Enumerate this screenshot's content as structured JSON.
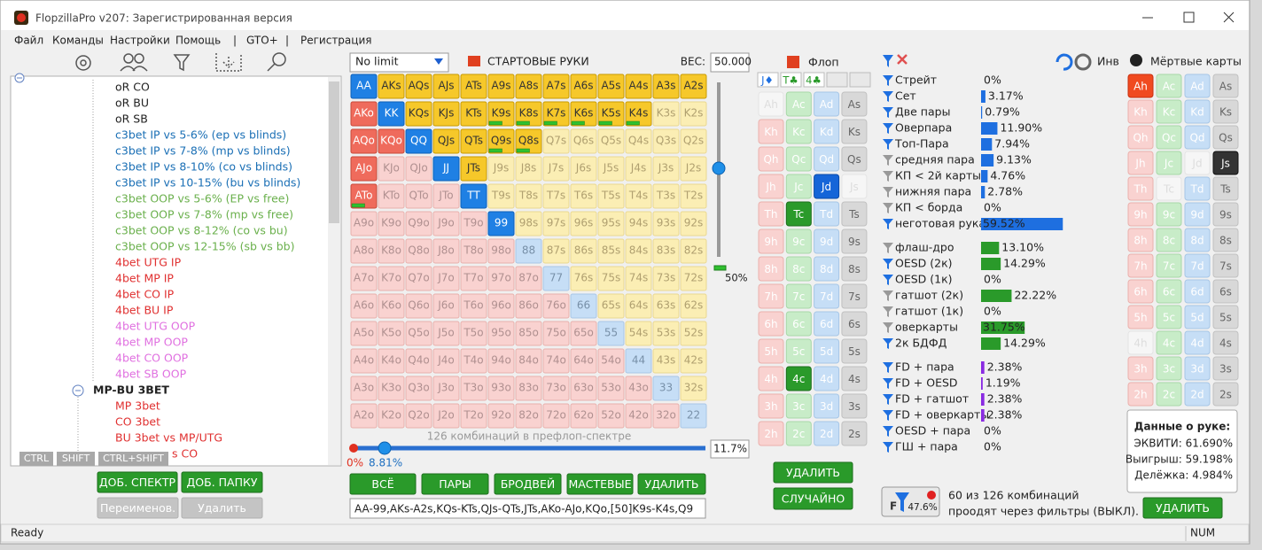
{
  "window": {
    "title": "FlopzillaPro v207: Зарегистрированная версия"
  },
  "menu": [
    "Файл",
    "Команды",
    "Настройки",
    "Помощь",
    "|",
    "GTO+",
    "|",
    "Регистрация"
  ],
  "tree": {
    "items": [
      {
        "text": "oR CO",
        "color": "#222222"
      },
      {
        "text": "oR BU",
        "color": "#222222"
      },
      {
        "text": "oR SB",
        "color": "#222222"
      },
      {
        "text": "c3bet IP vs 5-6% (ep vs blinds)",
        "color": "#1a6fb5"
      },
      {
        "text": "c3bet IP vs 7-8% (mp vs blinds)",
        "color": "#1a6fb5"
      },
      {
        "text": "c3bet IP vs 8-10% (co vs blinds)",
        "color": "#1a6fb5"
      },
      {
        "text": "c3bet IP vs 10-15% (bu vs blinds)",
        "color": "#1a6fb5"
      },
      {
        "text": "c3bet OOP vs 5-6% (EP vs free)",
        "color": "#6ab04c"
      },
      {
        "text": "c3bet OOP vs 7-8% (mp vs free)",
        "color": "#6ab04c"
      },
      {
        "text": "c3bet OOP vs 8-12% (co vs bu)",
        "color": "#6ab04c"
      },
      {
        "text": "c3bet OOP vs 12-15% (sb vs bb)",
        "color": "#6ab04c"
      },
      {
        "text": "4bet UTG IP",
        "color": "#e03030"
      },
      {
        "text": "4bet MP IP",
        "color": "#e03030"
      },
      {
        "text": "4bet CO IP",
        "color": "#e03030"
      },
      {
        "text": "4bet BU IP",
        "color": "#e03030"
      },
      {
        "text": "4bet UTG OOP",
        "color": "#e070e0"
      },
      {
        "text": "4bet MP OOP",
        "color": "#e070e0"
      },
      {
        "text": "4bet CO OOP",
        "color": "#e070e0"
      },
      {
        "text": "4bet SB OOP",
        "color": "#e070e0"
      }
    ],
    "group": "MP-BU 3BET",
    "group_items": [
      {
        "text": "MP 3bet",
        "color": "#e03030"
      },
      {
        "text": "CO 3bet",
        "color": "#e03030"
      },
      {
        "text": "BU 3bet vs MP/UTG",
        "color": "#e03030"
      },
      {
        "text": "s CO",
        "color": "#e03030"
      }
    ]
  },
  "modifier_keys": [
    "CTRL",
    "SHIFT",
    "CTRL+SHIFT"
  ],
  "spectrum_buttons": [
    "ДОБ. СПЕКТР",
    "ДОБ. ПАПКУ",
    "Переименов.",
    "Удалить"
  ],
  "range": {
    "game": "No limit",
    "title": "СТАРТОВЫЕ РУКИ",
    "weight_label": "ВЕС:",
    "weight": "50.000",
    "hands": [
      [
        "AA",
        "AKs",
        "AQs",
        "AJs",
        "ATs",
        "A9s",
        "A8s",
        "A7s",
        "A6s",
        "A5s",
        "A4s",
        "A3s",
        "A2s"
      ],
      [
        "AKo",
        "KK",
        "KQs",
        "KJs",
        "KTs",
        "K9s",
        "K8s",
        "K7s",
        "K6s",
        "K5s",
        "K4s",
        "K3s",
        "K2s"
      ],
      [
        "AQo",
        "KQo",
        "QQ",
        "QJs",
        "QTs",
        "Q9s",
        "Q8s",
        "Q7s",
        "Q6s",
        "Q5s",
        "Q4s",
        "Q3s",
        "Q2s"
      ],
      [
        "AJo",
        "KJo",
        "QJo",
        "JJ",
        "JTs",
        "J9s",
        "J8s",
        "J7s",
        "J6s",
        "J5s",
        "J4s",
        "J3s",
        "J2s"
      ],
      [
        "ATo",
        "KTo",
        "QTo",
        "JTo",
        "TT",
        "T9s",
        "T8s",
        "T7s",
        "T6s",
        "T5s",
        "T4s",
        "T3s",
        "T2s"
      ],
      [
        "A9o",
        "K9o",
        "Q9o",
        "J9o",
        "T9o",
        "99",
        "98s",
        "97s",
        "96s",
        "95s",
        "94s",
        "93s",
        "92s"
      ],
      [
        "A8o",
        "K8o",
        "Q8o",
        "J8o",
        "T8o",
        "98o",
        "88",
        "87s",
        "86s",
        "85s",
        "84s",
        "83s",
        "82s"
      ],
      [
        "A7o",
        "K7o",
        "Q7o",
        "J7o",
        "T7o",
        "97o",
        "87o",
        "77",
        "76s",
        "75s",
        "74s",
        "73s",
        "72s"
      ],
      [
        "A6o",
        "K6o",
        "Q6o",
        "J6o",
        "T6o",
        "96o",
        "86o",
        "76o",
        "66",
        "65s",
        "64s",
        "63s",
        "62s"
      ],
      [
        "A5o",
        "K5o",
        "Q5o",
        "J5o",
        "T5o",
        "95o",
        "85o",
        "75o",
        "65o",
        "55",
        "54s",
        "53s",
        "52s"
      ],
      [
        "A4o",
        "K4o",
        "Q4o",
        "J4o",
        "T4o",
        "94o",
        "84o",
        "74o",
        "64o",
        "54o",
        "44",
        "43s",
        "42s"
      ],
      [
        "A3o",
        "K3o",
        "Q3o",
        "J3o",
        "T3o",
        "93o",
        "83o",
        "73o",
        "63o",
        "53o",
        "43o",
        "33",
        "32s"
      ],
      [
        "A2o",
        "K2o",
        "Q2o",
        "J2o",
        "T2o",
        "92o",
        "82o",
        "72o",
        "62o",
        "52o",
        "42o",
        "32o",
        "22"
      ]
    ],
    "weights": [
      [
        1,
        1,
        1,
        1,
        1,
        1,
        1,
        1,
        1,
        1,
        1,
        1,
        1
      ],
      [
        1,
        1,
        1,
        1,
        1,
        0.5,
        0.5,
        0.5,
        0.5,
        0.5,
        0.5,
        0,
        0
      ],
      [
        1,
        1,
        1,
        1,
        1,
        0.5,
        0.5,
        0,
        0,
        0,
        0,
        0,
        0
      ],
      [
        1,
        0,
        0,
        1,
        1,
        0,
        0,
        0,
        0,
        0,
        0,
        0,
        0
      ],
      [
        0.5,
        0,
        0,
        0,
        1,
        0,
        0,
        0,
        0,
        0,
        0,
        0,
        0
      ],
      [
        0,
        0,
        0,
        0,
        0,
        1,
        0,
        0,
        0,
        0,
        0,
        0,
        0
      ],
      [
        0,
        0,
        0,
        0,
        0,
        0,
        0,
        0,
        0,
        0,
        0,
        0,
        0
      ],
      [
        0,
        0,
        0,
        0,
        0,
        0,
        0,
        0,
        0,
        0,
        0,
        0,
        0
      ],
      [
        0,
        0,
        0,
        0,
        0,
        0,
        0,
        0,
        0,
        0,
        0,
        0,
        0
      ],
      [
        0,
        0,
        0,
        0,
        0,
        0,
        0,
        0,
        0,
        0,
        0,
        0,
        0
      ],
      [
        0,
        0,
        0,
        0,
        0,
        0,
        0,
        0,
        0,
        0,
        0,
        0,
        0
      ],
      [
        0,
        0,
        0,
        0,
        0,
        0,
        0,
        0,
        0,
        0,
        0,
        0,
        0
      ],
      [
        0,
        0,
        0,
        0,
        0,
        0,
        0,
        0,
        0,
        0,
        0,
        0,
        0
      ]
    ],
    "slider_label": "50%",
    "combos_text": "126 комбинаций в префлоп-спектре",
    "min": "0%",
    "current": "8.81%",
    "total": "11.7%",
    "buttons": [
      "ВСЁ",
      "ПАРЫ",
      "БРОДВЕЙ",
      "МАСТЕВЫЕ",
      "УДАЛИТЬ"
    ],
    "range_text": "AA-99,AKs-A2s,KQs-KTs,QJs-QTs,JTs,AKo-AJo,KQo,[50]K9s-K4s,Q9"
  },
  "board": {
    "title": "Флоп",
    "slots": [
      "J♦",
      "T♣",
      "4♣"
    ],
    "cards": [
      [
        "Ah",
        "Ac",
        "Ad",
        "As"
      ],
      [
        "Kh",
        "Kc",
        "Kd",
        "Ks"
      ],
      [
        "Qh",
        "Qc",
        "Qd",
        "Qs"
      ],
      [
        "Jh",
        "Jc",
        "Jd",
        "Js"
      ],
      [
        "Th",
        "Tc",
        "Td",
        "Ts"
      ],
      [
        "9h",
        "9c",
        "9d",
        "9s"
      ],
      [
        "8h",
        "8c",
        "8d",
        "8s"
      ],
      [
        "7h",
        "7c",
        "7d",
        "7s"
      ],
      [
        "6h",
        "6c",
        "6d",
        "6s"
      ],
      [
        "5h",
        "5c",
        "5d",
        "5s"
      ],
      [
        "4h",
        "4c",
        "4d",
        "4s"
      ],
      [
        "3h",
        "3c",
        "3d",
        "3s"
      ],
      [
        "2h",
        "2c",
        "2d",
        "2s"
      ]
    ],
    "buttons": [
      "УДАЛИТЬ",
      "СЛУЧАЙНО"
    ]
  },
  "stats": {
    "invert": "Инв",
    "groups": [
      {
        "color": "#1e6fe0",
        "rows": [
          {
            "name": "Стрейт",
            "value": 0,
            "label": "0%"
          },
          {
            "name": "Сет",
            "value": 3.17,
            "label": "3.17%"
          },
          {
            "name": "Две пары",
            "value": 0.79,
            "label": "0.79%"
          },
          {
            "name": "Оверпара",
            "value": 11.9,
            "label": "11.90%"
          },
          {
            "name": "Топ-Пара",
            "value": 7.94,
            "label": "7.94%"
          },
          {
            "name": "средняя пара",
            "value": 9.13,
            "label": "9.13%"
          },
          {
            "name": "КП < 2й карты",
            "value": 4.76,
            "label": "4.76%"
          },
          {
            "name": "нижняя пара",
            "value": 2.78,
            "label": "2.78%"
          },
          {
            "name": "КП < борда",
            "value": 0,
            "label": "0%"
          },
          {
            "name": "неготовая рука",
            "value": 59.52,
            "label": "59.52%"
          }
        ]
      },
      {
        "color": "#2a9a2a",
        "rows": [
          {
            "name": "флаш-дро",
            "value": 13.1,
            "label": "13.10%"
          },
          {
            "name": "OESD (2к)",
            "value": 14.29,
            "label": "14.29%"
          },
          {
            "name": "OESD (1к)",
            "value": 0,
            "label": "0%"
          },
          {
            "name": "гатшот (2к)",
            "value": 22.22,
            "label": "22.22%"
          },
          {
            "name": "гатшот (1к)",
            "value": 0,
            "label": "0%"
          },
          {
            "name": "оверкарты",
            "value": 31.75,
            "label": "31.75%"
          },
          {
            "name": "2к БДФД",
            "value": 14.29,
            "label": "14.29%"
          }
        ]
      },
      {
        "color": "#8a2be2",
        "rows": [
          {
            "name": "FD + пара",
            "value": 2.38,
            "label": "2.38%"
          },
          {
            "name": "FD + OESD",
            "value": 1.19,
            "label": "1.19%"
          },
          {
            "name": "FD + гатшот",
            "value": 2.38,
            "label": "2.38%"
          },
          {
            "name": "FD + оверкарты",
            "value": 2.38,
            "label": "2.38%"
          },
          {
            "name": "OESD + пара",
            "value": 0,
            "label": "0%"
          },
          {
            "name": "ГШ + пара",
            "value": 0,
            "label": "0%"
          }
        ]
      }
    ]
  },
  "dead": {
    "title": "Мёртвые карты",
    "cards": [
      [
        "Ah",
        "Ac",
        "Ad",
        "As"
      ],
      [
        "Kh",
        "Kc",
        "Kd",
        "Ks"
      ],
      [
        "Qh",
        "Qc",
        "Qd",
        "Qs"
      ],
      [
        "Jh",
        "Jc",
        "Jd",
        "Js"
      ],
      [
        "Th",
        "Tc",
        "Td",
        "Ts"
      ],
      [
        "9h",
        "9c",
        "9d",
        "9s"
      ],
      [
        "8h",
        "8c",
        "8d",
        "8s"
      ],
      [
        "7h",
        "7c",
        "7d",
        "7s"
      ],
      [
        "6h",
        "6c",
        "6d",
        "6s"
      ],
      [
        "5h",
        "5c",
        "5d",
        "5s"
      ],
      [
        "4h",
        "4c",
        "4d",
        "4s"
      ],
      [
        "3h",
        "3c",
        "3d",
        "3s"
      ],
      [
        "2h",
        "2c",
        "2d",
        "2s"
      ]
    ]
  },
  "hand_info": {
    "title": "Данные о руке:",
    "lines": [
      "ЭКВИТИ: 61.690%",
      "Выигрыш: 59.198%",
      "Делёжка: 4.984%"
    ]
  },
  "filter_summary": {
    "letter": "F",
    "percent": "47.6%",
    "text": [
      "60 из 126 комбинаций",
      "проодят через фильтры (ВЫКЛ)."
    ],
    "button": "УДАЛИТЬ"
  },
  "status": [
    "Ready",
    "NUM"
  ]
}
